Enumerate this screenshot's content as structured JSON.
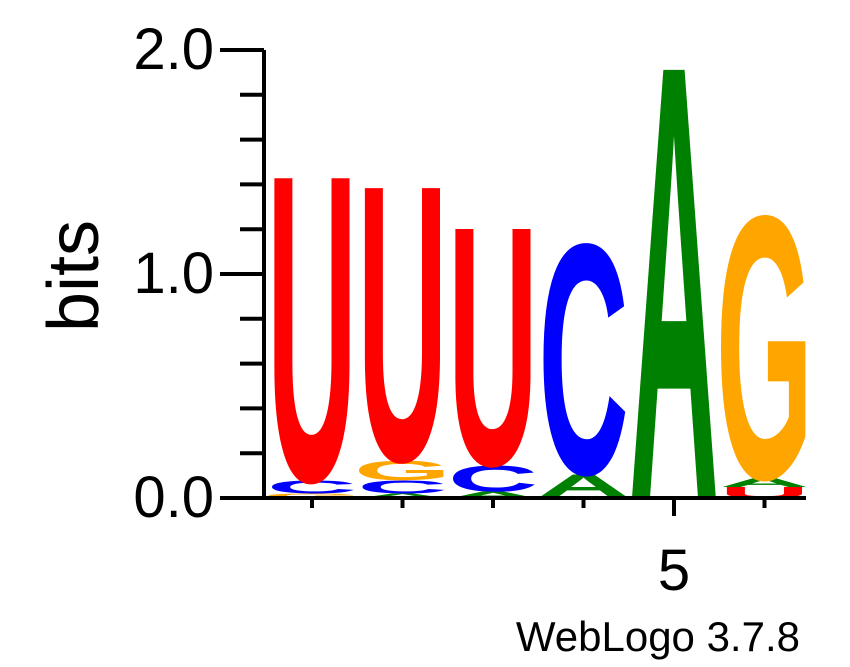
{
  "chart_data": {
    "type": "sequence_logo",
    "ylabel": "bits",
    "ylim": [
      0,
      2.0
    ],
    "y_ticks": [
      "0.0",
      "1.0",
      "2.0"
    ],
    "x_tick_labels": [
      {
        "position": 5,
        "label": "5"
      }
    ],
    "positions": [
      1,
      2,
      3,
      4,
      5,
      6
    ],
    "colors": {
      "A": "#008000",
      "C": "#0000ff",
      "G": "#ffa500",
      "U": "#ff0000"
    },
    "stacks": [
      {
        "position": 1,
        "letters": [
          {
            "base": "G",
            "bits": 0.02
          },
          {
            "base": "C",
            "bits": 0.06
          },
          {
            "base": "U",
            "bits": 1.41
          }
        ]
      },
      {
        "position": 2,
        "letters": [
          {
            "base": "A",
            "bits": 0.02
          },
          {
            "base": "C",
            "bits": 0.06
          },
          {
            "base": "G",
            "bits": 0.09
          },
          {
            "base": "U",
            "bits": 1.27
          }
        ]
      },
      {
        "position": 3,
        "letters": [
          {
            "base": "A",
            "bits": 0.03
          },
          {
            "base": "C",
            "bits": 0.12
          },
          {
            "base": "U",
            "bits": 1.1
          }
        ]
      },
      {
        "position": 4,
        "letters": [
          {
            "base": "U",
            "bits": 0.01
          },
          {
            "base": "A",
            "bits": 0.1
          },
          {
            "base": "C",
            "bits": 1.06
          }
        ]
      },
      {
        "position": 5,
        "letters": [
          {
            "base": "A",
            "bits": 2.0
          }
        ]
      },
      {
        "position": 6,
        "letters": [
          {
            "base": "U",
            "bits": 0.05
          },
          {
            "base": "A",
            "bits": 0.04
          },
          {
            "base": "G",
            "bits": 1.21
          }
        ]
      }
    ]
  },
  "footer": {
    "credit": "WebLogo 3.7.8"
  }
}
